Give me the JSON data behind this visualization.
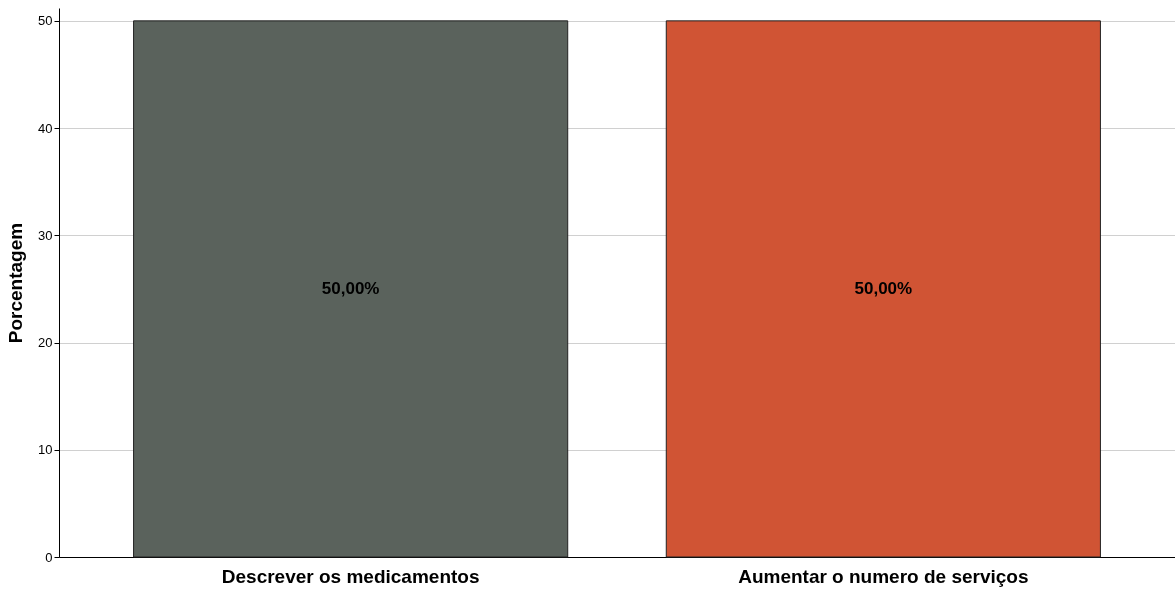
{
  "chart_data": {
    "type": "bar",
    "ylabel": "Porcentagem",
    "categories": [
      "Descrever os medicamentos",
      "Aumentar o numero de serviços"
    ],
    "values": [
      50,
      50
    ],
    "colors": [
      "#5a625c",
      "#d05434"
    ],
    "value_labels": [
      "50,00%",
      "50,00%"
    ],
    "ylim": [
      0,
      51.2
    ],
    "yticks": [
      0,
      10,
      20,
      30,
      40,
      50
    ],
    "grid": "y"
  }
}
